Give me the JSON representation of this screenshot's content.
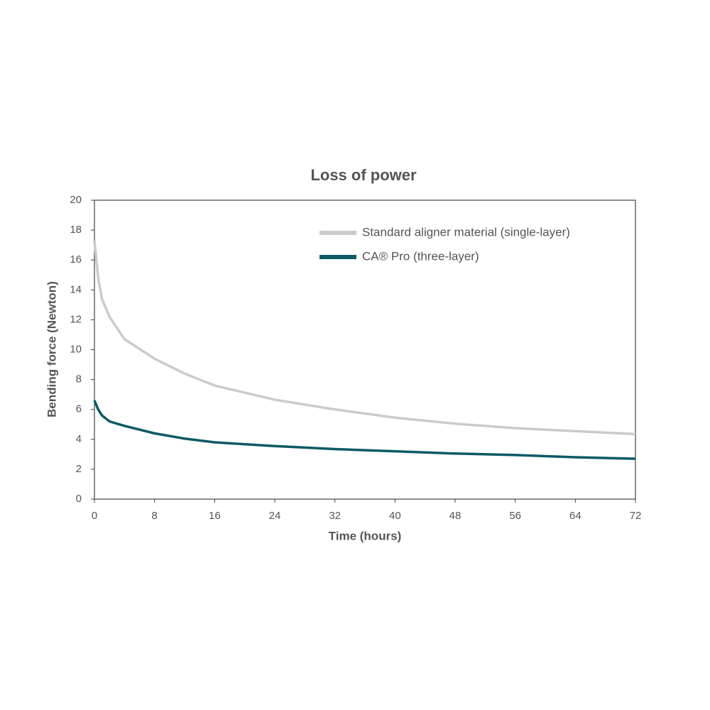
{
  "chart_data": {
    "type": "line",
    "title": "Loss of power",
    "xlabel": "Time (hours)",
    "ylabel": "Bending force (Newton)",
    "x": [
      0,
      0.5,
      1,
      2,
      4,
      8,
      12,
      16,
      24,
      32,
      40,
      48,
      56,
      64,
      72
    ],
    "series": [
      {
        "name": "Standard aligner material (single-layer)",
        "color": "#cbcbcb",
        "values": [
          17.3,
          14.8,
          13.4,
          12.2,
          10.7,
          9.4,
          8.4,
          7.6,
          6.65,
          6.0,
          5.45,
          5.05,
          4.75,
          4.55,
          4.35
        ]
      },
      {
        "name": "CA® Pro (three-layer)",
        "color": "#0d5a66",
        "values": [
          6.6,
          6.0,
          5.6,
          5.2,
          4.9,
          4.4,
          4.05,
          3.8,
          3.55,
          3.35,
          3.2,
          3.05,
          2.95,
          2.8,
          2.7
        ]
      }
    ],
    "xlim": [
      0,
      72
    ],
    "xticks": [
      0,
      8,
      16,
      24,
      32,
      40,
      48,
      56,
      64,
      72
    ],
    "ylim": [
      0,
      20
    ],
    "yticks": [
      0,
      2,
      4,
      6,
      8,
      10,
      12,
      14,
      16,
      18,
      20
    ],
    "grid": false,
    "legend": "upper right"
  }
}
